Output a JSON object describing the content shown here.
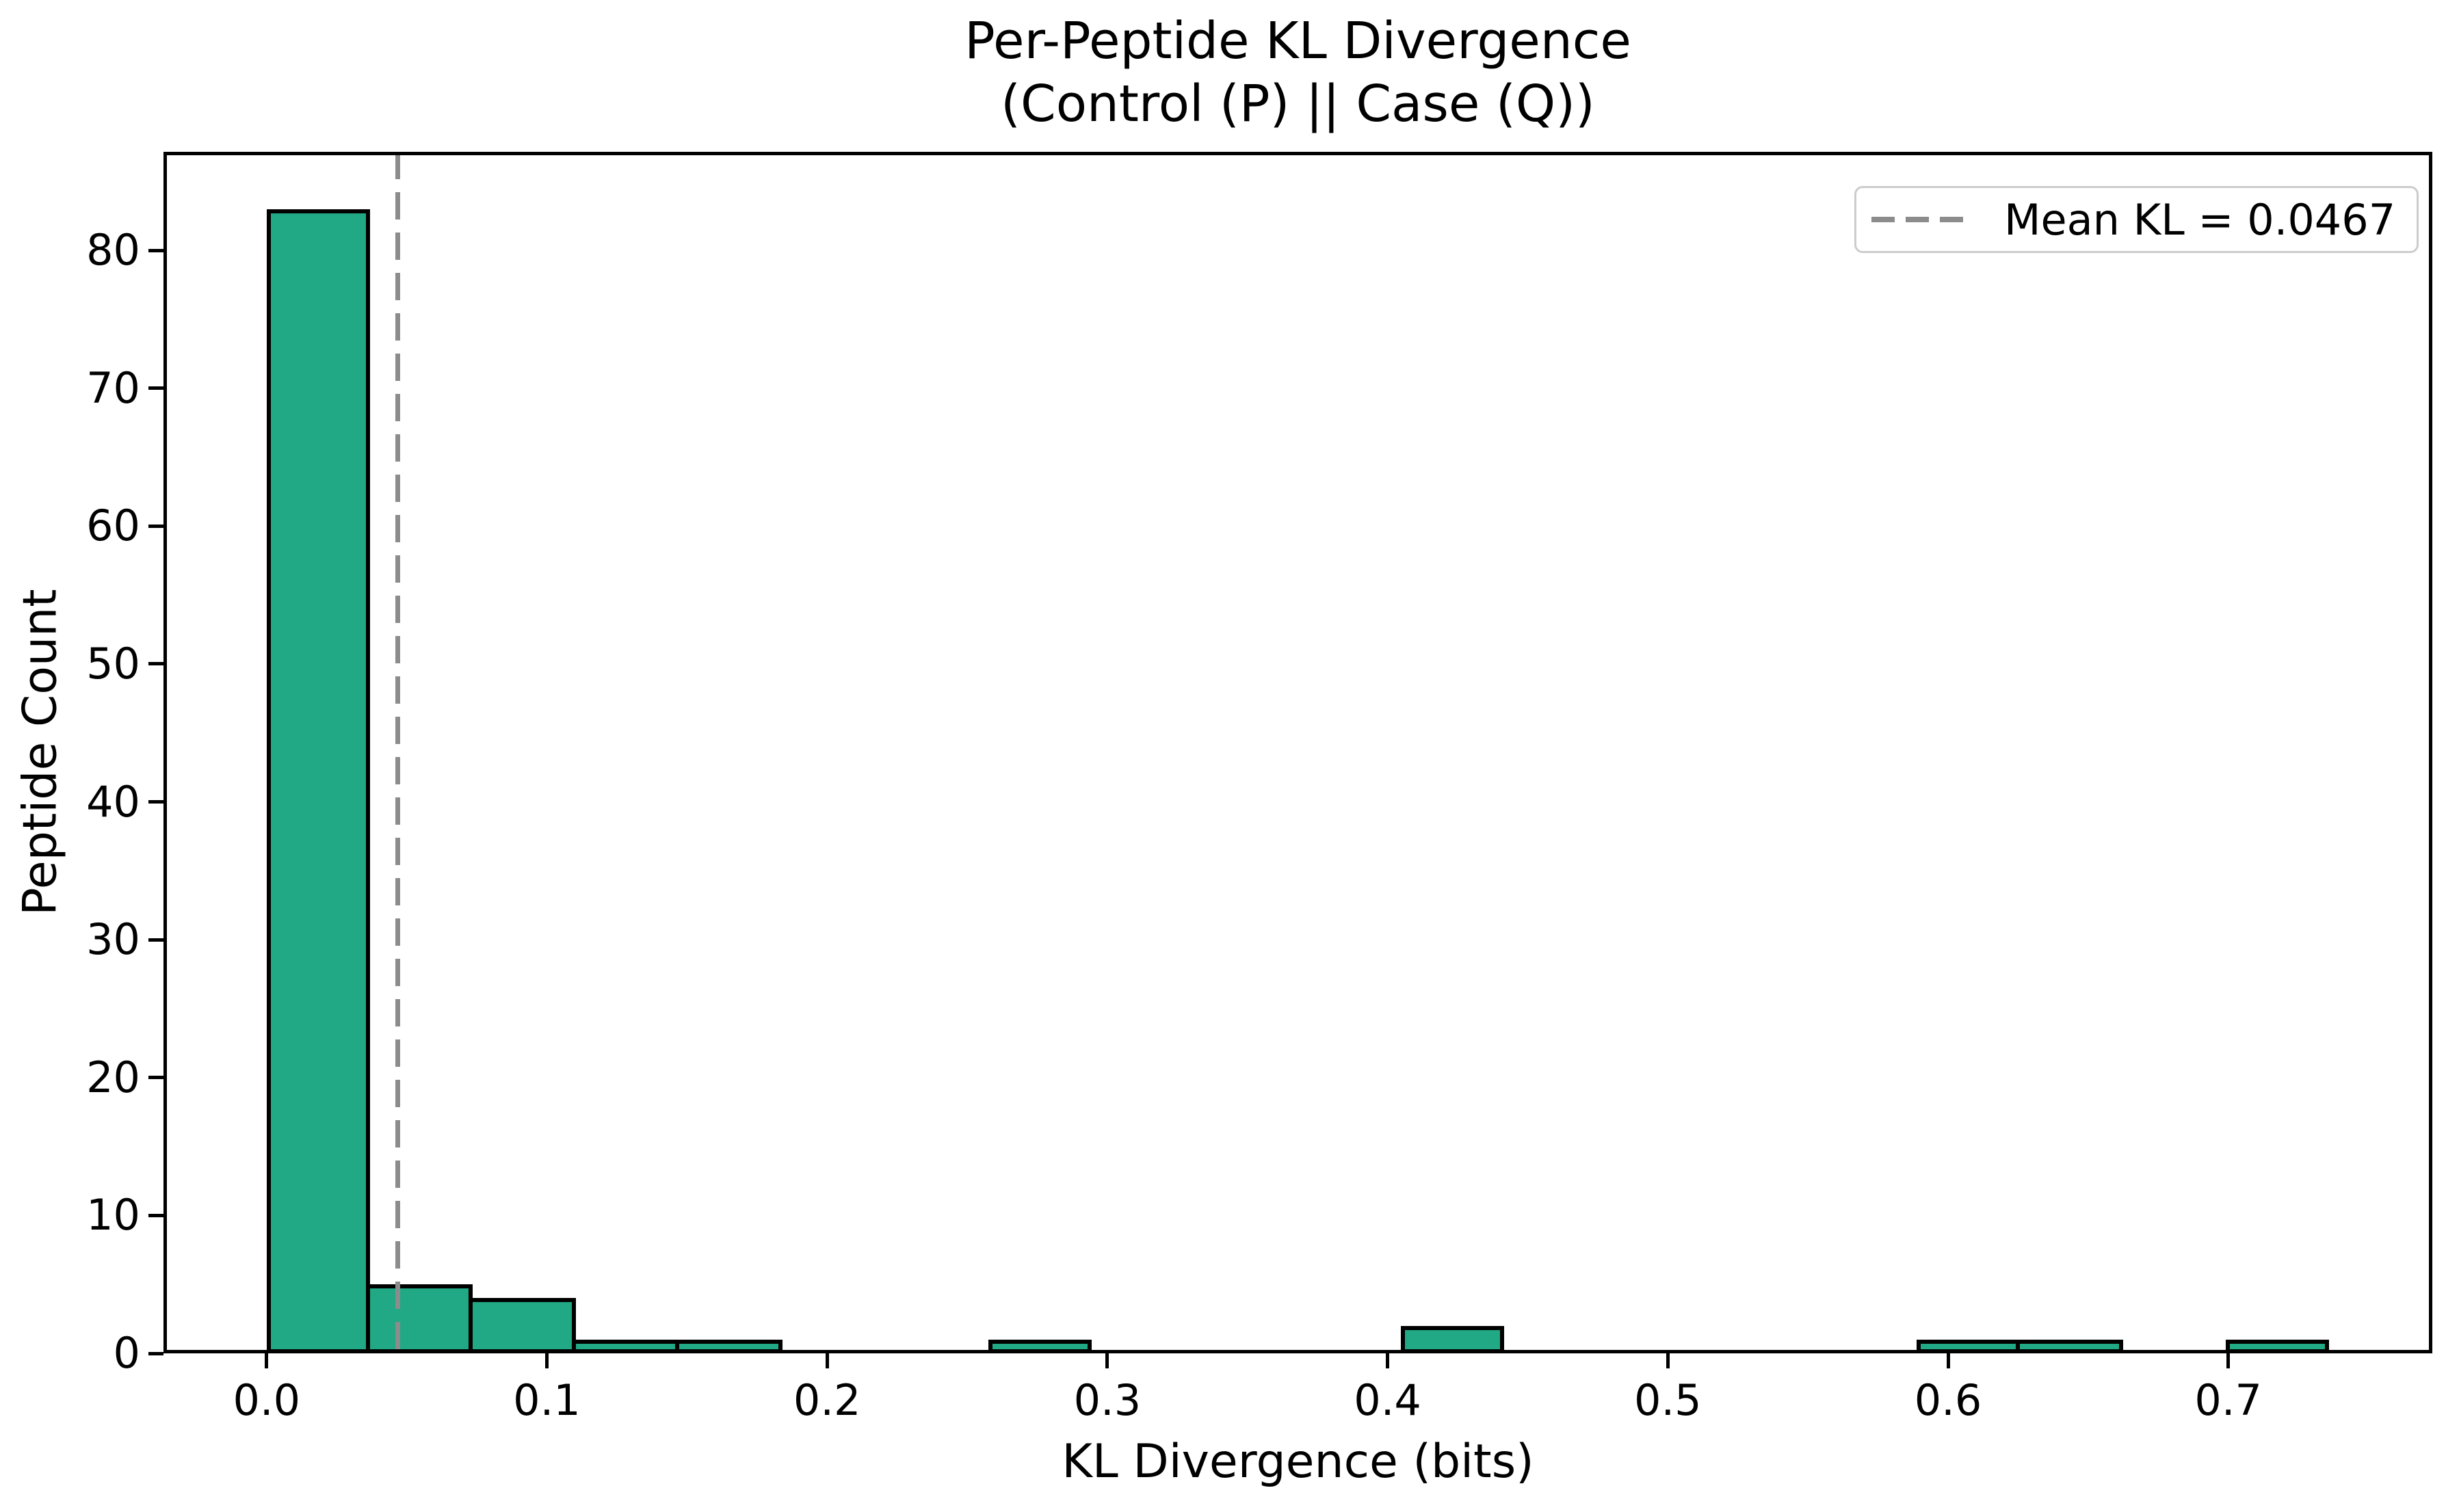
{
  "figure": {
    "title_line1": "Per-Peptide KL Divergence",
    "title_line2": "(Control (P) || Case (Q))"
  },
  "chart_data": {
    "type": "bar",
    "subtype": "histogram",
    "title": "Per-Peptide KL Divergence\n(Control (P) || Case (Q))",
    "xlabel": "KL Divergence (bits)",
    "ylabel": "Peptide Count",
    "bins": {
      "start": 0.0,
      "width": 0.0368,
      "count": 20
    },
    "counts": [
      83,
      5,
      4,
      1,
      1,
      0,
      0,
      1,
      0,
      0,
      0,
      2,
      0,
      0,
      0,
      0,
      1,
      1,
      0,
      1
    ],
    "xlim": [
      -0.0368,
      0.7728
    ],
    "ylim": [
      0,
      87.15
    ],
    "x_ticks": [
      {
        "value": 0.0,
        "label": "0.0"
      },
      {
        "value": 0.1,
        "label": "0.1"
      },
      {
        "value": 0.2,
        "label": "0.2"
      },
      {
        "value": 0.3,
        "label": "0.3"
      },
      {
        "value": 0.4,
        "label": "0.4"
      },
      {
        "value": 0.5,
        "label": "0.5"
      },
      {
        "value": 0.6,
        "label": "0.6"
      },
      {
        "value": 0.7,
        "label": "0.7"
      }
    ],
    "y_ticks": [
      {
        "value": 0,
        "label": "0"
      },
      {
        "value": 10,
        "label": "10"
      },
      {
        "value": 20,
        "label": "20"
      },
      {
        "value": 30,
        "label": "30"
      },
      {
        "value": 40,
        "label": "40"
      },
      {
        "value": 50,
        "label": "50"
      },
      {
        "value": 60,
        "label": "60"
      },
      {
        "value": 70,
        "label": "70"
      },
      {
        "value": 80,
        "label": "80"
      }
    ],
    "mean_line": {
      "value": 0.0467,
      "style": "dashed",
      "color": "#8c8c8c"
    },
    "legend": {
      "label": "Mean KL = 0.0467",
      "position": "upper right"
    },
    "colors": {
      "bar_fill": "#21a884",
      "bar_edge": "#000000",
      "background": "#ffffff",
      "text": "#000000",
      "legend_border": "#cccccc"
    },
    "grid": false
  }
}
